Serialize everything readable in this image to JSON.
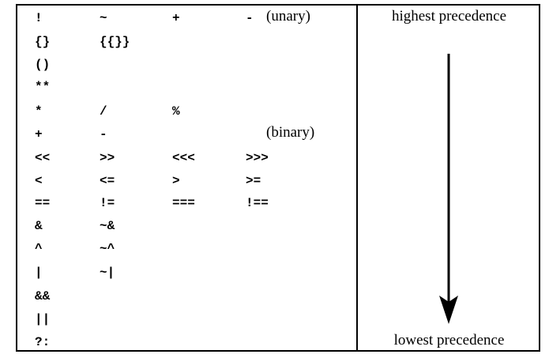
{
  "rows": [
    {
      "cols": [
        "!",
        "~",
        "+",
        "-"
      ],
      "note": "(unary)"
    },
    {
      "cols": [
        "{}",
        "{{}}",
        "",
        ""
      ],
      "note": ""
    },
    {
      "cols": [
        "()",
        "",
        "",
        ""
      ],
      "note": ""
    },
    {
      "cols": [
        "**",
        "",
        "",
        ""
      ],
      "note": ""
    },
    {
      "cols": [
        "*",
        "/",
        "%",
        ""
      ],
      "note": ""
    },
    {
      "cols": [
        "+",
        "-",
        "",
        ""
      ],
      "note": "(binary)"
    },
    {
      "cols": [
        "<<",
        ">>",
        "<<<",
        ">>>"
      ],
      "note": ""
    },
    {
      "cols": [
        "<",
        "<=",
        ">",
        ">="
      ],
      "note": ""
    },
    {
      "cols": [
        "==",
        "!=",
        "===",
        "!=="
      ],
      "note": ""
    },
    {
      "cols": [
        "&",
        "~&",
        "",
        ""
      ],
      "note": ""
    },
    {
      "cols": [
        "^",
        "~^",
        "",
        ""
      ],
      "note": ""
    },
    {
      "cols": [
        "|",
        "~|",
        "",
        ""
      ],
      "note": ""
    },
    {
      "cols": [
        "&&",
        "",
        "",
        ""
      ],
      "note": ""
    },
    {
      "cols": [
        "||",
        "",
        "",
        ""
      ],
      "note": ""
    },
    {
      "cols": [
        "?:",
        "",
        "",
        ""
      ],
      "note": ""
    }
  ],
  "labels": {
    "top": "highest precedence",
    "bottom": "lowest precedence"
  },
  "colors": {
    "ink": "#000000",
    "background": "#ffffff"
  }
}
